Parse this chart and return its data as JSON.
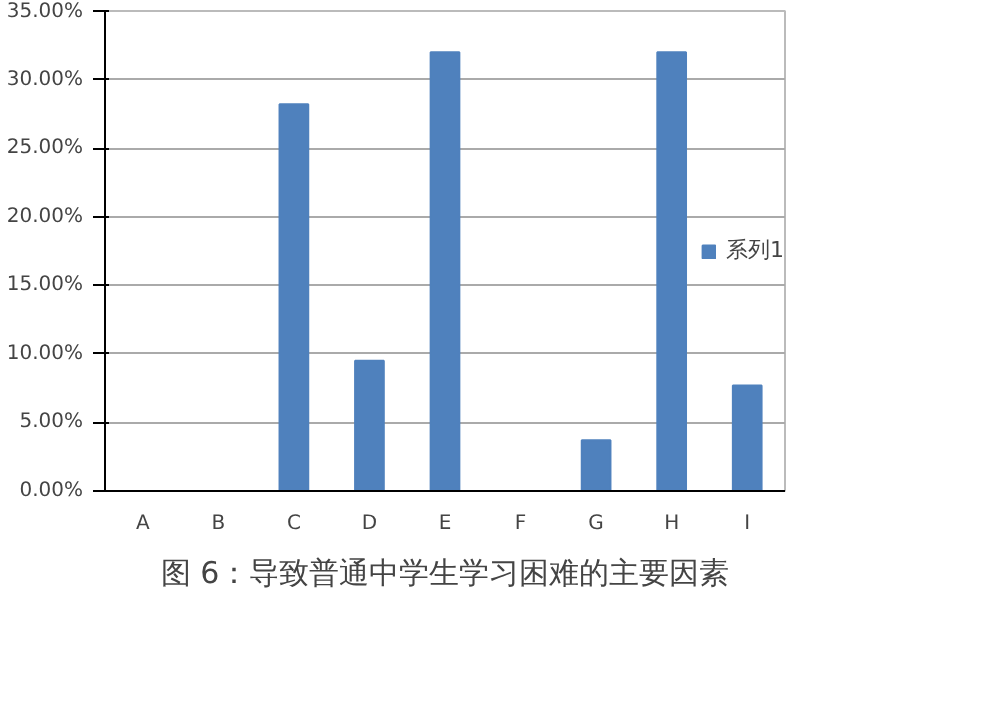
{
  "chart_data": {
    "type": "bar",
    "categories": [
      "A",
      "B",
      "C",
      "D",
      "E",
      "F",
      "G",
      "H",
      "I"
    ],
    "series": [
      {
        "name": "系列1",
        "color": "#4f81bd",
        "values": [
          null,
          null,
          28.2,
          9.5,
          32.0,
          null,
          3.7,
          32.0,
          7.7
        ]
      }
    ],
    "ylim": [
      0,
      35
    ],
    "yticks": [
      {
        "value": 0,
        "label": "0.00%"
      },
      {
        "value": 5,
        "label": "5.00%"
      },
      {
        "value": 10,
        "label": "10.00%"
      },
      {
        "value": 15,
        "label": "15.00%"
      },
      {
        "value": 20,
        "label": "20.00%"
      },
      {
        "value": 25,
        "label": "25.00%"
      },
      {
        "value": 30,
        "label": "30.00%"
      },
      {
        "value": 35,
        "label": "35.00%"
      }
    ],
    "grid": "y",
    "legend": "right",
    "annotations": [
      "图 6：导致普通中学生学习困难的主要因素"
    ]
  }
}
